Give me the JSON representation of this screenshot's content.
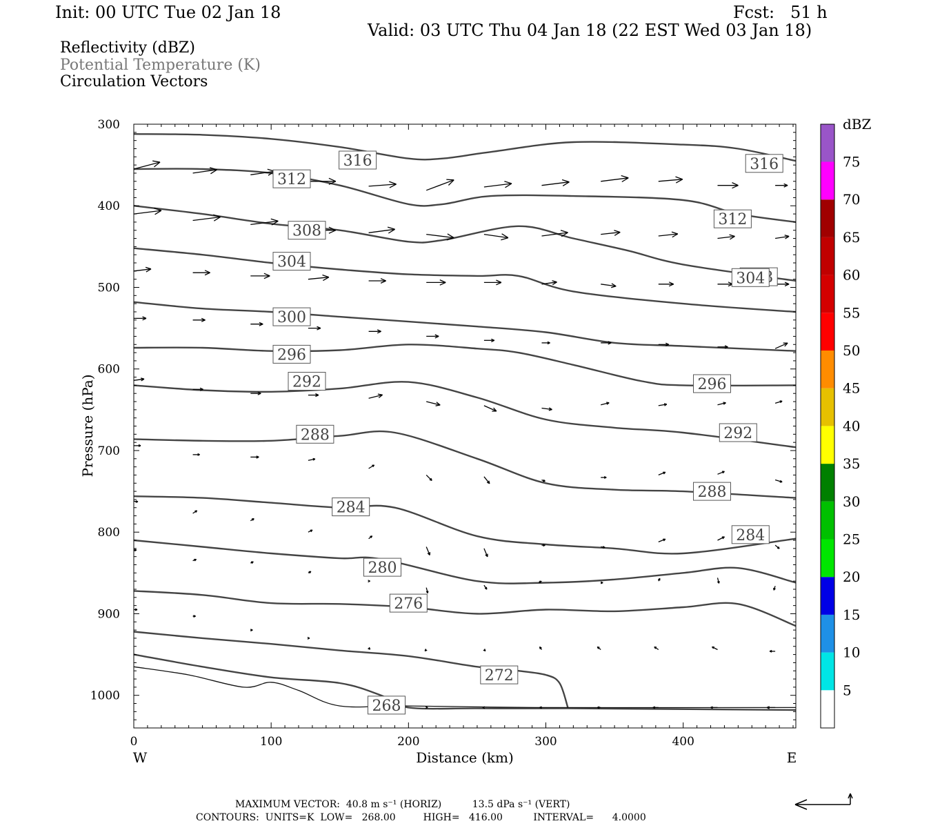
{
  "header": {
    "init": "Init: 00 UTC Tue 02 Jan 18",
    "fcst": "Fcst:   51 h",
    "valid": "Valid: 03 UTC Thu 04 Jan 18 (22 EST Wed 03 Jan 18)"
  },
  "legend": {
    "line1": "Reflectivity (dBZ)",
    "line2": "Potential Temperature (K)",
    "line3": "Circulation Vectors",
    "line2_color": "#777777"
  },
  "footer": {
    "max_vector": "MAXIMUM VECTOR:  40.8 m s⁻¹ (HORIZ)          13.5 dPa s⁻¹ (VERT)",
    "contours": "CONTOURS:  UNITS=K  LOW=   268.00         HIGH=   416.00          INTERVAL=      4.0000"
  },
  "chart_data": {
    "type": "line",
    "xlabel": "Distance (km)",
    "ylabel": "Pressure (hPa)",
    "xlim": [
      0,
      482
    ],
    "ylim": [
      1040,
      300
    ],
    "x_ticks": [
      0,
      100,
      200,
      300,
      400
    ],
    "y_ticks": [
      300,
      400,
      500,
      600,
      700,
      800,
      900,
      1000
    ],
    "x_end_labels": {
      "left": "W",
      "right": "E"
    },
    "colorbar": {
      "title": "dBZ",
      "ticks": [
        5,
        10,
        15,
        20,
        25,
        30,
        35,
        40,
        45,
        50,
        55,
        60,
        65,
        70,
        75
      ],
      "colors": [
        "#00e5e5",
        "#1e90e6",
        "#0000e6",
        "#00e600",
        "#00c000",
        "#008000",
        "#ffff00",
        "#e6c000",
        "#ff8c00",
        "#ff0000",
        "#d40000",
        "#c00000",
        "#a00000",
        "#ff00ff",
        "#9955c8"
      ]
    },
    "theta_contours": [
      {
        "level": "316",
        "points": [
          [
            0,
            312
          ],
          [
            50,
            313
          ],
          [
            100,
            318
          ],
          [
            150,
            328
          ],
          [
            200,
            342
          ],
          [
            225,
            342
          ],
          [
            260,
            334
          ],
          [
            320,
            322
          ],
          [
            400,
            325
          ],
          [
            440,
            330
          ],
          [
            482,
            345
          ]
        ],
        "labels": [
          [
            163,
            344
          ],
          [
            459,
            348
          ]
        ]
      },
      {
        "level": "312",
        "points": [
          [
            0,
            355
          ],
          [
            50,
            355
          ],
          [
            100,
            360
          ],
          [
            150,
            375
          ],
          [
            200,
            398
          ],
          [
            225,
            398
          ],
          [
            260,
            388
          ],
          [
            320,
            388
          ],
          [
            400,
            393
          ],
          [
            440,
            410
          ],
          [
            482,
            420
          ]
        ],
        "labels": [
          [
            115,
            367
          ],
          [
            436,
            416
          ]
        ]
      },
      {
        "level": "308",
        "points": [
          [
            0,
            400
          ],
          [
            50,
            410
          ],
          [
            100,
            422
          ],
          [
            150,
            430
          ],
          [
            200,
            444
          ],
          [
            225,
            442
          ],
          [
            280,
            425
          ],
          [
            320,
            440
          ],
          [
            360,
            455
          ],
          [
            400,
            472
          ],
          [
            482,
            492
          ]
        ],
        "labels": [
          [
            126,
            430
          ],
          [
            455,
            487
          ]
        ]
      },
      {
        "level": "304",
        "points": [
          [
            0,
            452
          ],
          [
            50,
            460
          ],
          [
            100,
            470
          ],
          [
            150,
            478
          ],
          [
            200,
            484
          ],
          [
            250,
            486
          ],
          [
            280,
            486
          ],
          [
            320,
            505
          ],
          [
            400,
            520
          ],
          [
            482,
            530
          ]
        ],
        "labels": [
          [
            115,
            468
          ],
          [
            449,
            488
          ]
        ]
      },
      {
        "level": "300",
        "points": [
          [
            0,
            518
          ],
          [
            50,
            526
          ],
          [
            100,
            530
          ],
          [
            150,
            536
          ],
          [
            200,
            542
          ],
          [
            250,
            548
          ],
          [
            300,
            555
          ],
          [
            350,
            568
          ],
          [
            400,
            572
          ],
          [
            482,
            578
          ]
        ],
        "labels": [
          [
            115,
            536
          ]
        ]
      },
      {
        "level": "296",
        "points": [
          [
            0,
            574
          ],
          [
            50,
            574
          ],
          [
            100,
            578
          ],
          [
            150,
            577
          ],
          [
            200,
            570
          ],
          [
            250,
            575
          ],
          [
            280,
            580
          ],
          [
            320,
            595
          ],
          [
            370,
            615
          ],
          [
            400,
            620
          ],
          [
            482,
            620
          ]
        ],
        "labels": [
          [
            115,
            582
          ],
          [
            421,
            618
          ]
        ]
      },
      {
        "level": "292",
        "points": [
          [
            0,
            620
          ],
          [
            50,
            626
          ],
          [
            100,
            628
          ],
          [
            150,
            624
          ],
          [
            200,
            616
          ],
          [
            250,
            635
          ],
          [
            300,
            662
          ],
          [
            350,
            672
          ],
          [
            400,
            678
          ],
          [
            482,
            696
          ]
        ],
        "labels": [
          [
            126,
            615
          ],
          [
            440,
            678
          ]
        ]
      },
      {
        "level": "288",
        "points": [
          [
            0,
            686
          ],
          [
            50,
            688
          ],
          [
            100,
            688
          ],
          [
            150,
            682
          ],
          [
            190,
            678
          ],
          [
            250,
            710
          ],
          [
            300,
            740
          ],
          [
            350,
            748
          ],
          [
            400,
            750
          ],
          [
            482,
            758
          ]
        ],
        "labels": [
          [
            132,
            680
          ],
          [
            421,
            750
          ]
        ]
      },
      {
        "level": "284",
        "points": [
          [
            0,
            756
          ],
          [
            50,
            758
          ],
          [
            100,
            764
          ],
          [
            150,
            770
          ],
          [
            190,
            770
          ],
          [
            250,
            805
          ],
          [
            300,
            815
          ],
          [
            350,
            820
          ],
          [
            400,
            826
          ],
          [
            482,
            808
          ]
        ],
        "labels": [
          [
            158,
            769
          ],
          [
            449,
            803
          ]
        ]
      },
      {
        "level": "280",
        "points": [
          [
            0,
            810
          ],
          [
            50,
            818
          ],
          [
            100,
            826
          ],
          [
            150,
            832
          ],
          [
            180,
            833
          ],
          [
            250,
            860
          ],
          [
            300,
            862
          ],
          [
            350,
            858
          ],
          [
            400,
            850
          ],
          [
            440,
            844
          ],
          [
            482,
            862
          ]
        ],
        "labels": [
          [
            181,
            843
          ]
        ]
      },
      {
        "level": "276",
        "points": [
          [
            0,
            872
          ],
          [
            50,
            877
          ],
          [
            100,
            887
          ],
          [
            150,
            888
          ],
          [
            200,
            892
          ],
          [
            250,
            900
          ],
          [
            300,
            895
          ],
          [
            350,
            897
          ],
          [
            400,
            892
          ],
          [
            440,
            888
          ],
          [
            482,
            915
          ]
        ],
        "labels": [
          [
            200,
            887
          ]
        ]
      },
      {
        "level": "272",
        "points": [
          [
            0,
            922
          ],
          [
            50,
            930
          ],
          [
            100,
            937
          ],
          [
            150,
            945
          ],
          [
            200,
            952
          ],
          [
            250,
            965
          ],
          [
            280,
            970
          ],
          [
            300,
            975
          ],
          [
            310,
            985
          ],
          [
            316,
            1015
          ]
        ],
        "labels": [
          [
            266,
            975
          ]
        ]
      },
      {
        "level": "268",
        "points": [
          [
            0,
            950
          ],
          [
            50,
            965
          ],
          [
            100,
            978
          ],
          [
            150,
            985
          ],
          [
            180,
            1000
          ],
          [
            200,
            1015
          ],
          [
            250,
            1016
          ],
          [
            316,
            1016
          ],
          [
            482,
            1018
          ]
        ],
        "labels": [
          [
            184,
            1012
          ]
        ]
      }
    ],
    "terrain_line": [
      [
        0,
        965
      ],
      [
        40,
        975
      ],
      [
        80,
        990
      ],
      [
        100,
        984
      ],
      [
        120,
        994
      ],
      [
        150,
        1013
      ],
      [
        200,
        1013
      ],
      [
        300,
        1015
      ],
      [
        482,
        1015
      ]
    ],
    "vectors": [
      [
        0,
        355,
        38,
        -10
      ],
      [
        43,
        360,
        35,
        -5
      ],
      [
        85,
        362,
        35,
        -5
      ],
      [
        127,
        370,
        40,
        0
      ],
      [
        171,
        376,
        40,
        -3
      ],
      [
        213,
        381,
        40,
        -15
      ],
      [
        255,
        377,
        40,
        -5
      ],
      [
        297,
        375,
        40,
        -5
      ],
      [
        340,
        370,
        40,
        -5
      ],
      [
        382,
        370,
        35,
        -3
      ],
      [
        425,
        375,
        30,
        0
      ],
      [
        467,
        375,
        18,
        0
      ],
      [
        0,
        410,
        40,
        -5
      ],
      [
        43,
        418,
        40,
        -5
      ],
      [
        85,
        423,
        40,
        -5
      ],
      [
        127,
        430,
        40,
        0
      ],
      [
        171,
        433,
        38,
        -5
      ],
      [
        213,
        435,
        40,
        5
      ],
      [
        255,
        435,
        35,
        5
      ],
      [
        297,
        437,
        38,
        -5
      ],
      [
        340,
        435,
        28,
        -3
      ],
      [
        382,
        437,
        28,
        -3
      ],
      [
        425,
        440,
        25,
        -3
      ],
      [
        467,
        440,
        20,
        -3
      ],
      [
        0,
        480,
        25,
        -3
      ],
      [
        43,
        482,
        25,
        0
      ],
      [
        85,
        486,
        28,
        0
      ],
      [
        127,
        490,
        30,
        -3
      ],
      [
        171,
        492,
        25,
        0
      ],
      [
        213,
        494,
        28,
        0
      ],
      [
        255,
        494,
        25,
        0
      ],
      [
        297,
        496,
        22,
        -3
      ],
      [
        340,
        496,
        22,
        3
      ],
      [
        382,
        496,
        22,
        0
      ],
      [
        425,
        496,
        22,
        0
      ],
      [
        467,
        496,
        20,
        0
      ],
      [
        0,
        538,
        18,
        0
      ],
      [
        43,
        540,
        18,
        0
      ],
      [
        85,
        545,
        18,
        0
      ],
      [
        127,
        550,
        18,
        0
      ],
      [
        171,
        554,
        18,
        0
      ],
      [
        213,
        560,
        18,
        0
      ],
      [
        255,
        565,
        15,
        0
      ],
      [
        297,
        568,
        12,
        0
      ],
      [
        340,
        568,
        15,
        0
      ],
      [
        382,
        570,
        15,
        0
      ],
      [
        425,
        573,
        15,
        0
      ],
      [
        467,
        575,
        18,
        -8
      ],
      [
        0,
        614,
        15,
        -2
      ],
      [
        43,
        625,
        15,
        0
      ],
      [
        85,
        630,
        15,
        0
      ],
      [
        127,
        632,
        15,
        0
      ],
      [
        171,
        636,
        20,
        -5
      ],
      [
        213,
        640,
        20,
        5
      ],
      [
        255,
        645,
        18,
        8
      ],
      [
        297,
        648,
        15,
        2
      ],
      [
        340,
        644,
        12,
        -3
      ],
      [
        382,
        645,
        12,
        -2
      ],
      [
        425,
        644,
        12,
        -3
      ],
      [
        467,
        642,
        10,
        -3
      ],
      [
        0,
        694,
        10,
        0
      ],
      [
        43,
        705,
        10,
        0
      ],
      [
        85,
        708,
        12,
        0
      ],
      [
        127,
        712,
        10,
        -2
      ],
      [
        171,
        722,
        8,
        -5
      ],
      [
        213,
        730,
        8,
        8
      ],
      [
        255,
        732,
        8,
        10
      ],
      [
        297,
        736,
        5,
        2
      ],
      [
        340,
        733,
        8,
        0
      ],
      [
        382,
        730,
        10,
        -4
      ],
      [
        425,
        729,
        10,
        -4
      ],
      [
        467,
        736,
        10,
        3
      ],
      [
        0,
        762,
        6,
        1
      ],
      [
        43,
        777,
        6,
        -4
      ],
      [
        85,
        786,
        5,
        -3
      ],
      [
        127,
        800,
        6,
        -3
      ],
      [
        171,
        808,
        5,
        -4
      ],
      [
        213,
        818,
        5,
        12
      ],
      [
        255,
        820,
        5,
        12
      ],
      [
        297,
        816,
        5,
        0
      ],
      [
        340,
        818,
        6,
        1
      ],
      [
        382,
        812,
        10,
        -4
      ],
      [
        425,
        810,
        10,
        -5
      ],
      [
        467,
        816,
        6,
        5
      ],
      [
        0,
        822,
        4,
        0
      ],
      [
        43,
        835,
        5,
        -2
      ],
      [
        85,
        838,
        4,
        -2
      ],
      [
        127,
        850,
        4,
        -2
      ],
      [
        171,
        860,
        2,
        0
      ],
      [
        213,
        868,
        2,
        8
      ],
      [
        255,
        865,
        4,
        6
      ],
      [
        297,
        860,
        -4,
        2
      ],
      [
        340,
        862,
        3,
        0
      ],
      [
        382,
        860,
        2,
        -4
      ],
      [
        425,
        856,
        2,
        8
      ],
      [
        467,
        866,
        -2,
        6
      ],
      [
        0,
        895,
        5,
        0
      ],
      [
        43,
        903,
        4,
        0
      ],
      [
        85,
        920,
        3,
        0
      ],
      [
        127,
        930,
        2,
        0
      ],
      [
        171,
        942,
        2,
        2
      ],
      [
        213,
        944,
        -2,
        2
      ],
      [
        255,
        944,
        2,
        2
      ],
      [
        297,
        944,
        -3,
        -4
      ],
      [
        340,
        944,
        -5,
        -4
      ],
      [
        382,
        944,
        -6,
        -4
      ],
      [
        425,
        944,
        -8,
        -4
      ],
      [
        467,
        946,
        -8,
        0
      ],
      [
        171,
        1015,
        2,
        0
      ],
      [
        213,
        1015,
        2,
        0
      ],
      [
        255,
        1015,
        -2,
        0
      ],
      [
        297,
        1015,
        -3,
        0
      ],
      [
        340,
        1015,
        -5,
        0
      ],
      [
        382,
        1015,
        -8,
        0
      ],
      [
        425,
        1015,
        -10,
        0
      ],
      [
        467,
        1015,
        -12,
        0
      ]
    ]
  }
}
